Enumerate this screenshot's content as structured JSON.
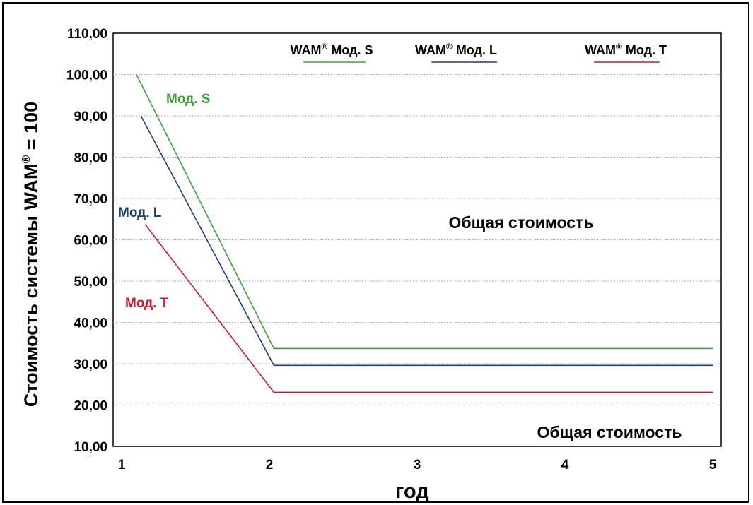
{
  "chart_data": {
    "type": "line",
    "ylabel": "Стоимость системы WAM",
    "ylabel_sup": "®",
    "ylabel_suffix": " = 100",
    "xlabel": "год",
    "y_ticks": [
      "110,00",
      "100,00",
      "90,00",
      "80,00",
      "70,00",
      "60,00",
      "50,00",
      "40,00",
      "30,00",
      "20,00",
      "10,00"
    ],
    "y_tick_values": [
      110,
      100,
      90,
      80,
      70,
      60,
      50,
      40,
      30,
      20,
      10
    ],
    "x_ticks": [
      "1",
      "2",
      "3",
      "4",
      "5"
    ],
    "x_tick_values": [
      1,
      2,
      3,
      4,
      5
    ],
    "xlim": [
      1,
      5
    ],
    "ylim": [
      10,
      110
    ],
    "grid": "horizontal dotted",
    "legend_placement": "top",
    "series": [
      {
        "name": "WAM® Мод. S",
        "legend_base": "WAM",
        "legend_sup": "®",
        "legend_rest": " Мод. S",
        "label": "Мод. S",
        "color": "#3aa336",
        "x": [
          1.1,
          2.03,
          5
        ],
        "y": [
          100,
          33.7,
          33.7
        ]
      },
      {
        "name": "WAM® Мод. L",
        "legend_base": "WAM",
        "legend_sup": "®",
        "legend_rest": " Мод. L",
        "label": "Мод. L",
        "color": "#1c3f75",
        "x": [
          1.13,
          2.03,
          5
        ],
        "y": [
          90,
          29.6,
          29.6
        ]
      },
      {
        "name": "WAM® Мод. T",
        "legend_base": "WAM",
        "legend_sup": "®",
        "legend_rest": " Мод. T",
        "label": "Мод. T",
        "color": "#d6132b",
        "x": [
          1.16,
          2.03,
          5
        ],
        "y": [
          63.7,
          23.1,
          23.1
        ]
      }
    ],
    "annotations": [
      "Общая стоимость",
      "Общая стоимость"
    ]
  }
}
